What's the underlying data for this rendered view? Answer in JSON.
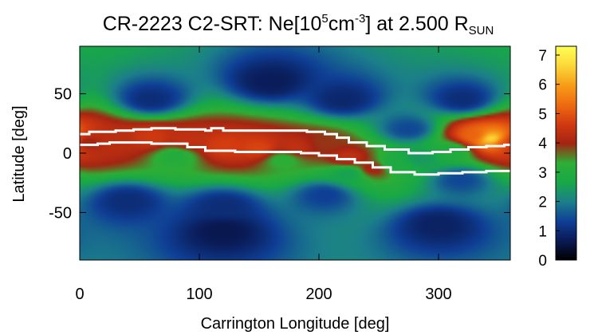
{
  "chart_data": {
    "type": "heatmap",
    "title": {
      "main": "CR-2223 C2-SRT: Ne[10",
      "sup1": "5",
      "mid": "cm",
      "sup2": "-3",
      "tail": "] at 2.500 R",
      "sub": "SUN"
    },
    "xlabel": "Carrington Longitude [deg]",
    "ylabel": "Latitude [deg]",
    "xlim": [
      0,
      360
    ],
    "ylim": [
      -90,
      90
    ],
    "x_ticks": [
      0,
      100,
      200,
      300
    ],
    "x_tick_labels": [
      "0",
      "100",
      "200",
      "300"
    ],
    "y_ticks": [
      50,
      0,
      -50
    ],
    "y_tick_labels": [
      "50",
      "0",
      "-50"
    ],
    "colorbar": {
      "range": [
        0,
        7.3
      ],
      "ticks": [
        0,
        1,
        2,
        3,
        4,
        5,
        6,
        7
      ],
      "tick_labels": [
        "0",
        "1",
        "2",
        "3",
        "4",
        "5",
        "6",
        "7"
      ],
      "colors": [
        "#000000",
        "#0a1a55",
        "#0f3f96",
        "#1c7f8a",
        "#18a848",
        "#2eae35",
        "#a32412",
        "#d23a10",
        "#ee6c10",
        "#f79d18",
        "#fbd83a",
        "#ffff55"
      ]
    },
    "features": [
      {
        "lon": 5,
        "lat": 9,
        "value": 3.8
      },
      {
        "lon": 30,
        "lat": 10,
        "value": 4.3
      },
      {
        "lon": 60,
        "lat": 13,
        "value": 4.6
      },
      {
        "lon": 90,
        "lat": 11,
        "value": 4.4
      },
      {
        "lon": 120,
        "lat": 6,
        "value": 4.7
      },
      {
        "lon": 150,
        "lat": 4,
        "value": 4.8
      },
      {
        "lon": 180,
        "lat": 5,
        "value": 4.4
      },
      {
        "lon": 205,
        "lat": 8,
        "value": 3.9
      },
      {
        "lon": 225,
        "lat": -4,
        "value": 4.4
      },
      {
        "lon": 245,
        "lat": -13,
        "value": 4.1
      },
      {
        "lon": 263,
        "lat": -9,
        "value": 2.8
      },
      {
        "lon": 285,
        "lat": -4,
        "value": 2.4
      },
      {
        "lon": 312,
        "lat": 2,
        "value": 2.9
      },
      {
        "lon": 330,
        "lat": 15,
        "value": 5.2
      },
      {
        "lon": 345,
        "lat": 12,
        "value": 6.8
      },
      {
        "lon": 355,
        "lat": 9,
        "value": 5.0
      },
      {
        "lon": 225,
        "lat": -17,
        "value": 2.5
      },
      {
        "lon": 170,
        "lat": -5,
        "value": 3.2
      },
      {
        "lon": 80,
        "lat": -2,
        "value": 3.0
      },
      {
        "lon": 275,
        "lat": 20,
        "value": 1.4
      },
      {
        "lon": 318,
        "lat": -22,
        "value": 1.4
      },
      {
        "lon": 205,
        "lat": -35,
        "value": 1.3
      },
      {
        "lon": 120,
        "lat": -45,
        "value": 1.0
      },
      {
        "lon": 40,
        "lat": -40,
        "value": 1.0
      },
      {
        "lon": 60,
        "lat": 45,
        "value": 1.0
      },
      {
        "lon": 220,
        "lat": 45,
        "value": 0.9
      },
      {
        "lon": 320,
        "lat": 45,
        "value": 1.0
      },
      {
        "lon": 160,
        "lat": 60,
        "value": 0.7
      },
      {
        "lon": 120,
        "lat": -65,
        "value": 0.6
      },
      {
        "lon": 300,
        "lat": -60,
        "value": 0.8
      }
    ],
    "boundary_upper": [
      [
        0,
        16
      ],
      [
        5,
        16
      ],
      [
        8,
        18
      ],
      [
        20,
        18
      ],
      [
        30,
        19
      ],
      [
        45,
        20
      ],
      [
        60,
        21
      ],
      [
        80,
        20
      ],
      [
        105,
        19
      ],
      [
        110,
        21
      ],
      [
        120,
        19
      ],
      [
        160,
        19
      ],
      [
        190,
        18
      ],
      [
        205,
        16
      ],
      [
        215,
        13
      ],
      [
        225,
        9
      ],
      [
        240,
        6
      ],
      [
        255,
        3
      ],
      [
        275,
        0
      ],
      [
        295,
        1
      ],
      [
        310,
        3
      ],
      [
        325,
        5
      ],
      [
        340,
        6
      ],
      [
        355,
        7
      ],
      [
        360,
        7
      ]
    ],
    "boundary_lower": [
      [
        0,
        7
      ],
      [
        15,
        8
      ],
      [
        25,
        9
      ],
      [
        40,
        9
      ],
      [
        60,
        8
      ],
      [
        90,
        5
      ],
      [
        105,
        2
      ],
      [
        130,
        1
      ],
      [
        160,
        1
      ],
      [
        185,
        0
      ],
      [
        200,
        -2
      ],
      [
        215,
        -5
      ],
      [
        230,
        -8
      ],
      [
        245,
        -12
      ],
      [
        260,
        -16
      ],
      [
        280,
        -18
      ],
      [
        300,
        -17
      ],
      [
        320,
        -16
      ],
      [
        340,
        -15
      ],
      [
        360,
        -15
      ]
    ]
  }
}
